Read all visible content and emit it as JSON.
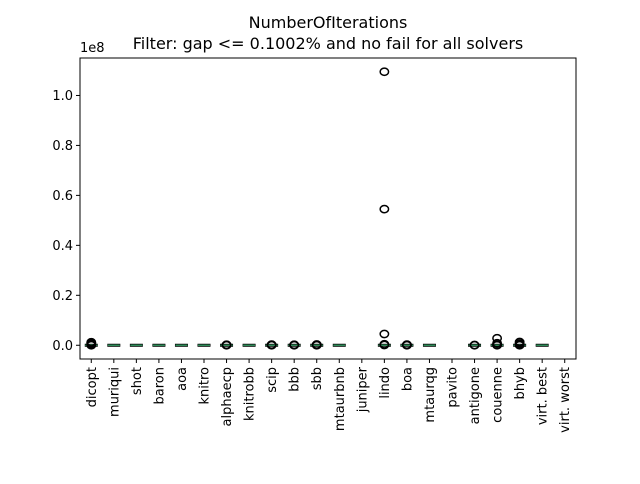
{
  "chart_data": {
    "type": "box",
    "title": "NumberOfIterations",
    "subtitle": "Filter: gap <= 0.1002% and no fail for all solvers",
    "xlabel": "",
    "ylabel": "",
    "y_offset_label": "1e8",
    "y_scale": 100000000,
    "ylim": [
      -5500000,
      115000000
    ],
    "yticks": [
      0.0,
      0.2,
      0.4,
      0.6,
      0.8,
      1.0
    ],
    "ytick_labels": [
      "0.0",
      "0.2",
      "0.4",
      "0.6",
      "0.8",
      "1.0"
    ],
    "categories": [
      "dicopt",
      "muriqui",
      "shot",
      "baron",
      "aoa",
      "knitro",
      "alphaecp",
      "knitrobb",
      "scip",
      "bbb",
      "sbb",
      "mtaurbnb",
      "juniper",
      "lindo",
      "boa",
      "mtaurqg",
      "pavito",
      "antigone",
      "couenne",
      "bhyb",
      "virt. best",
      "virt. worst"
    ],
    "median_color": "#2e8b57",
    "boxes": [
      {
        "category": "dicopt",
        "has_data": true,
        "outliers": [
          0,
          300000,
          600000,
          900000,
          1200000
        ]
      },
      {
        "category": "muriqui",
        "has_data": true,
        "outliers": []
      },
      {
        "category": "shot",
        "has_data": true,
        "outliers": []
      },
      {
        "category": "baron",
        "has_data": true,
        "outliers": []
      },
      {
        "category": "aoa",
        "has_data": true,
        "outliers": []
      },
      {
        "category": "knitro",
        "has_data": true,
        "outliers": []
      },
      {
        "category": "alphaecp",
        "has_data": true,
        "outliers": [
          0,
          100000,
          200000
        ]
      },
      {
        "category": "knitrobb",
        "has_data": true,
        "outliers": []
      },
      {
        "category": "scip",
        "has_data": true,
        "outliers": [
          0,
          100000,
          250000
        ]
      },
      {
        "category": "bbb",
        "has_data": true,
        "outliers": [
          0,
          100000,
          200000
        ]
      },
      {
        "category": "sbb",
        "has_data": true,
        "outliers": [
          0,
          100000,
          300000
        ]
      },
      {
        "category": "mtaurbnb",
        "has_data": true,
        "outliers": []
      },
      {
        "category": "juniper",
        "has_data": false,
        "outliers": []
      },
      {
        "category": "lindo",
        "has_data": true,
        "outliers": [
          109500000,
          54500000,
          4500000,
          400000,
          100000
        ]
      },
      {
        "category": "boa",
        "has_data": true,
        "outliers": [
          0,
          100000,
          250000
        ]
      },
      {
        "category": "mtaurqg",
        "has_data": true,
        "outliers": []
      },
      {
        "category": "pavito",
        "has_data": false,
        "outliers": []
      },
      {
        "category": "antigone",
        "has_data": true,
        "outliers": [
          0,
          100000
        ]
      },
      {
        "category": "couenne",
        "has_data": true,
        "outliers": [
          2800000,
          800000,
          200000,
          0
        ]
      },
      {
        "category": "bhyb",
        "has_data": true,
        "outliers": [
          1300000,
          700000,
          300000,
          0
        ]
      },
      {
        "category": "virt. best",
        "has_data": true,
        "outliers": []
      },
      {
        "category": "virt. worst",
        "has_data": false,
        "outliers": []
      }
    ]
  }
}
